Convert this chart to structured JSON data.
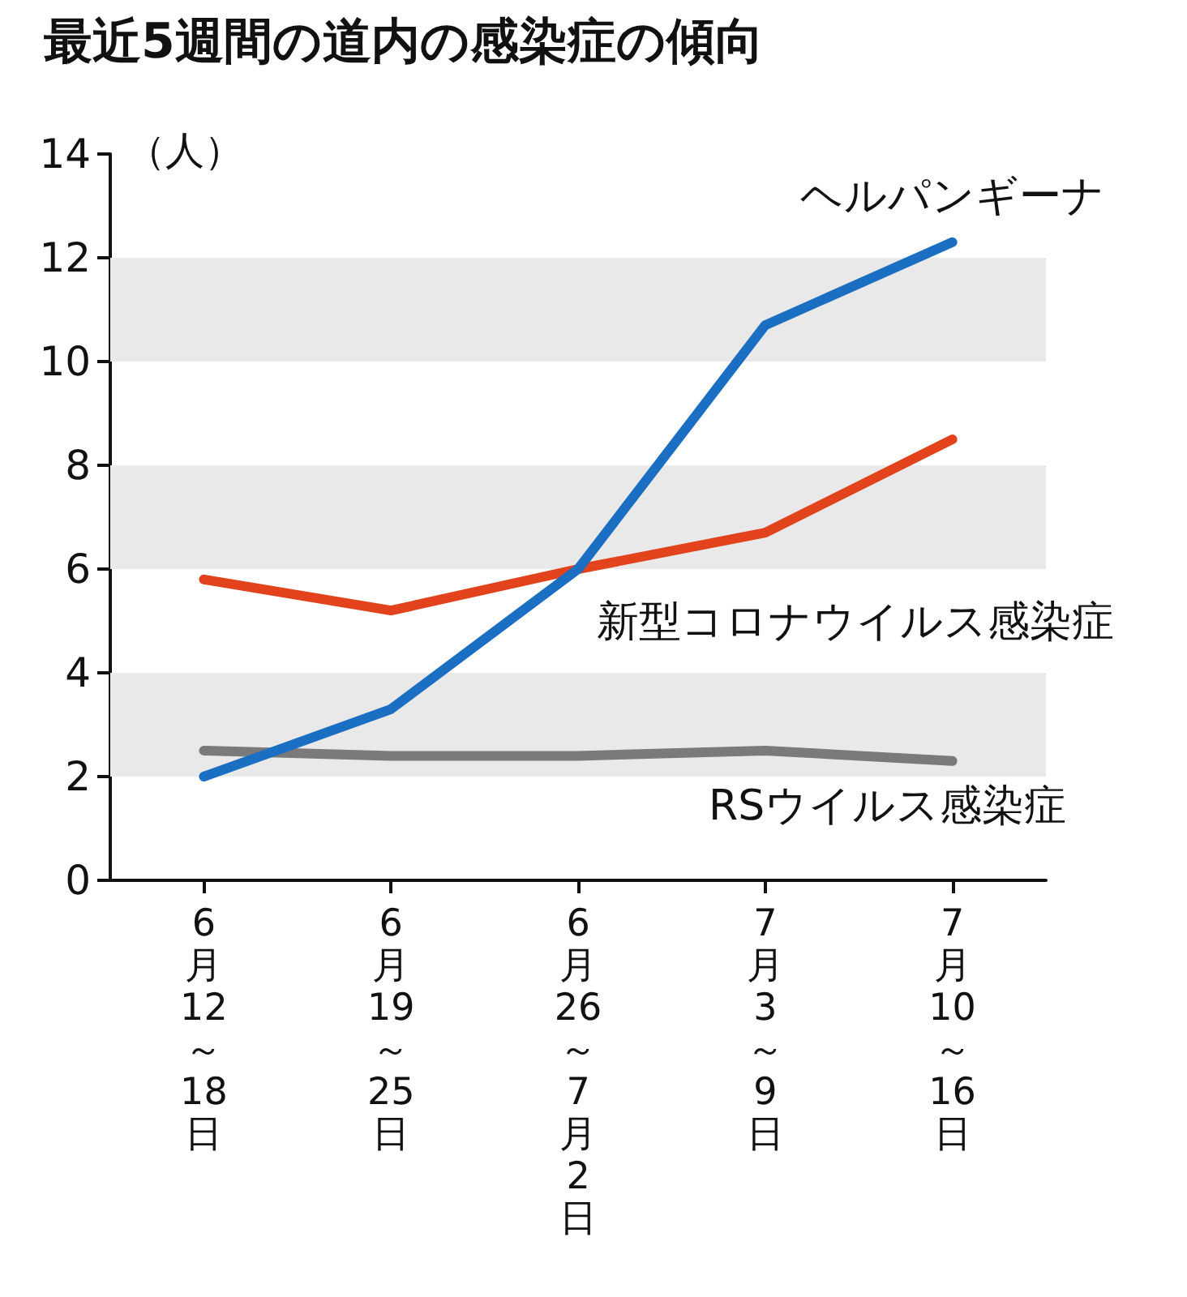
{
  "chart_data": {
    "type": "line",
    "title": "最近5週間の道内の感染症の傾向",
    "ylabel": "（人）",
    "categories": [
      "6月12～18日",
      "6月19～25日",
      "6月26～7月2日",
      "7月3～9日",
      "7月10～16日"
    ],
    "series": [
      {
        "name": "ヘルパンギーナ",
        "color": "#1b6fc2",
        "values": [
          2.0,
          3.3,
          6.0,
          10.7,
          12.3
        ]
      },
      {
        "name": "新型コロナウイルス感染症",
        "color": "#e2431c",
        "values": [
          5.8,
          5.2,
          6.0,
          6.7,
          8.5
        ]
      },
      {
        "name": "RSウイルス感染症",
        "color": "#7a7a7a",
        "values": [
          2.5,
          2.4,
          2.4,
          2.5,
          2.3
        ]
      }
    ],
    "ylim": [
      0,
      14
    ],
    "yticks": [
      0,
      2,
      4,
      6,
      8,
      10,
      12,
      14
    ],
    "bands": [
      {
        "axis": "y",
        "from": 2,
        "to": 4,
        "color": "#e9e9e9"
      },
      {
        "axis": "y",
        "from": 6,
        "to": 8,
        "color": "#e9e9e9"
      },
      {
        "axis": "y",
        "from": 10,
        "to": 12,
        "color": "#e9e9e9"
      }
    ],
    "grid": false,
    "legend": false,
    "marker": "none",
    "line_style": "solid"
  }
}
